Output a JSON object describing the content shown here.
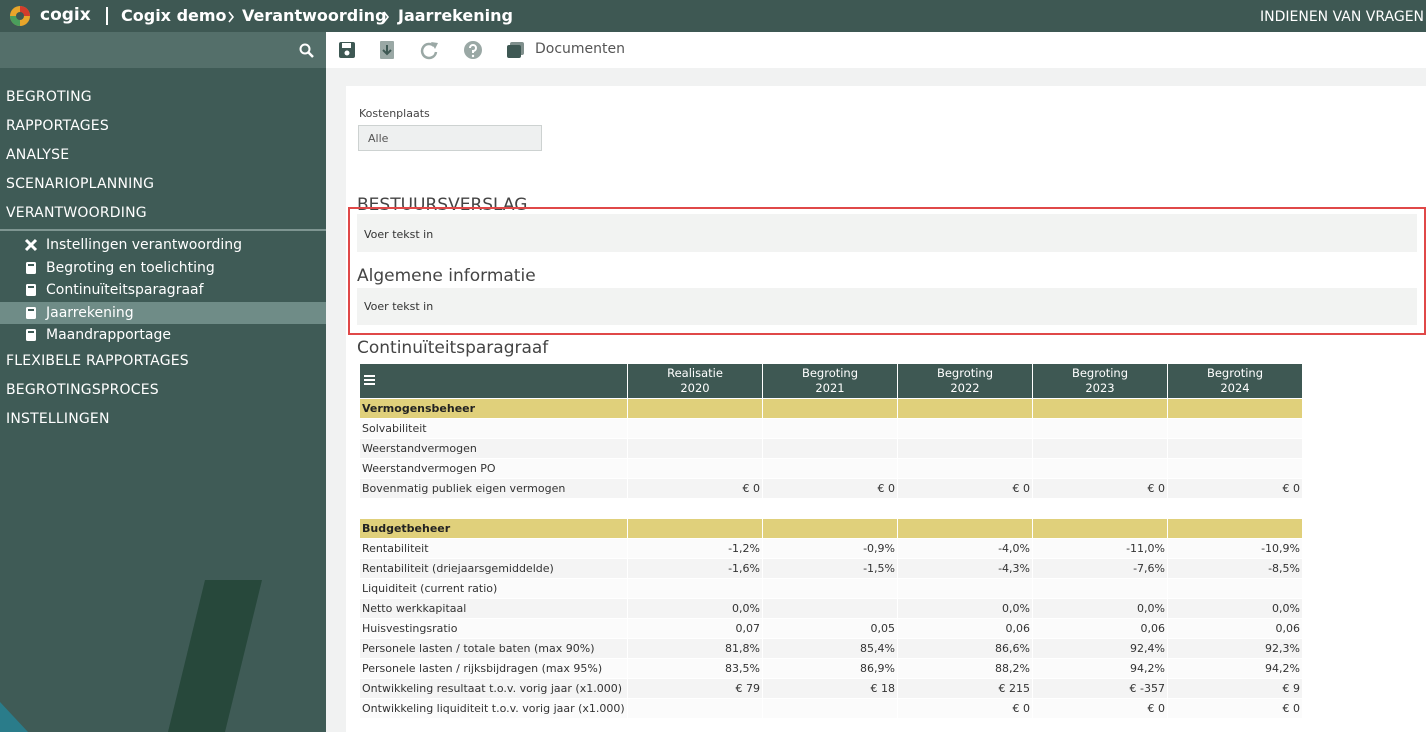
{
  "header": {
    "logo": "cogix",
    "breadcrumb": [
      "Cogix demo",
      "Verantwoording",
      "Jaarrekening"
    ],
    "right": "INDIENEN VAN VRAGEN"
  },
  "toolbar": {
    "documents": "Documenten"
  },
  "sidebar": {
    "menu_top": [
      "BEGROTING",
      "RAPPORTAGES",
      "ANALYSE",
      "SCENARIOPLANNING",
      "VERANTWOORDING"
    ],
    "submenu": [
      {
        "label": "Instellingen verantwoording",
        "icon": "tools",
        "active": false
      },
      {
        "label": "Begroting en toelichting",
        "icon": "doc",
        "active": false
      },
      {
        "label": "Continuïteitsparagraaf",
        "icon": "doc",
        "active": false
      },
      {
        "label": "Jaarrekening",
        "icon": "doc",
        "active": true
      },
      {
        "label": "Maandrapportage",
        "icon": "doc",
        "active": false
      }
    ],
    "menu_bottom": [
      "FLEXIBELE RAPPORTAGES",
      "BEGROTINGSPROCES",
      "INSTELLINGEN"
    ]
  },
  "filter": {
    "label": "Kostenplaats",
    "value": "Alle"
  },
  "sections": [
    {
      "title": "BESTUURSVERSLAG",
      "placeholder": "Voer tekst in"
    },
    {
      "title": "Algemene informatie",
      "placeholder": "Voer tekst in"
    }
  ],
  "table": {
    "title": "Continuïteitsparagraaf",
    "columns": [
      {
        "line1": "Realisatie",
        "line2": "2020"
      },
      {
        "line1": "Begroting",
        "line2": "2021"
      },
      {
        "line1": "Begroting",
        "line2": "2022"
      },
      {
        "line1": "Begroting",
        "line2": "2023"
      },
      {
        "line1": "Begroting",
        "line2": "2024"
      }
    ],
    "groups": [
      {
        "name": "Vermogensbeheer",
        "rows": [
          {
            "label": "Solvabiliteit",
            "cells": [
              null,
              null,
              null,
              null,
              null
            ]
          },
          {
            "label": "Weerstandvermogen",
            "cells": [
              null,
              null,
              null,
              null,
              null
            ]
          },
          {
            "label": "Weerstandvermogen PO",
            "cells": [
              null,
              null,
              null,
              null,
              null
            ]
          },
          {
            "label": "Bovenmatig publiek eigen vermogen",
            "cells": [
              "€ 0",
              "€ 0",
              "€ 0",
              "€ 0",
              "€ 0"
            ]
          }
        ]
      },
      {
        "name": "Budgetbeheer",
        "rows": [
          {
            "label": "Rentabiliteit",
            "cells": [
              "-1,2%",
              "-0,9%",
              "-4,0%",
              "-11,0%",
              "-10,9%"
            ]
          },
          {
            "label": "Rentabiliteit (driejaarsgemiddelde)",
            "cells": [
              "-1,6%",
              "-1,5%",
              "-4,3%",
              "-7,6%",
              "-8,5%"
            ]
          },
          {
            "label": "Liquiditeit (current ratio)",
            "cells": [
              null,
              null,
              null,
              null,
              null
            ]
          },
          {
            "label": "Netto werkkapitaal",
            "cells": [
              "0,0%",
              null,
              "0,0%",
              "0,0%",
              "0,0%"
            ]
          },
          {
            "label": "Huisvestingsratio",
            "cells": [
              "0,07",
              "0,05",
              "0,06",
              "0,06",
              "0,06"
            ]
          },
          {
            "label": "Personele lasten / totale baten (max 90%)",
            "cells": [
              "81,8%",
              "85,4%",
              "86,6%",
              "92,4%",
              "92,3%"
            ]
          },
          {
            "label": "Personele lasten / rijksbijdragen (max 95%)",
            "cells": [
              "83,5%",
              "86,9%",
              "88,2%",
              "94,2%",
              "94,2%"
            ]
          },
          {
            "label": "Ontwikkeling resultaat t.o.v. vorig jaar (x1.000)",
            "cells": [
              "€ 79",
              "€ 18",
              "€ 215",
              "€ -357",
              "€ 9"
            ]
          },
          {
            "label": "Ontwikkeling liquiditeit t.o.v. vorig jaar (x1.000)",
            "cells": [
              null,
              null,
              "€ 0",
              "€ 0",
              "€ 0"
            ]
          }
        ]
      }
    ]
  }
}
